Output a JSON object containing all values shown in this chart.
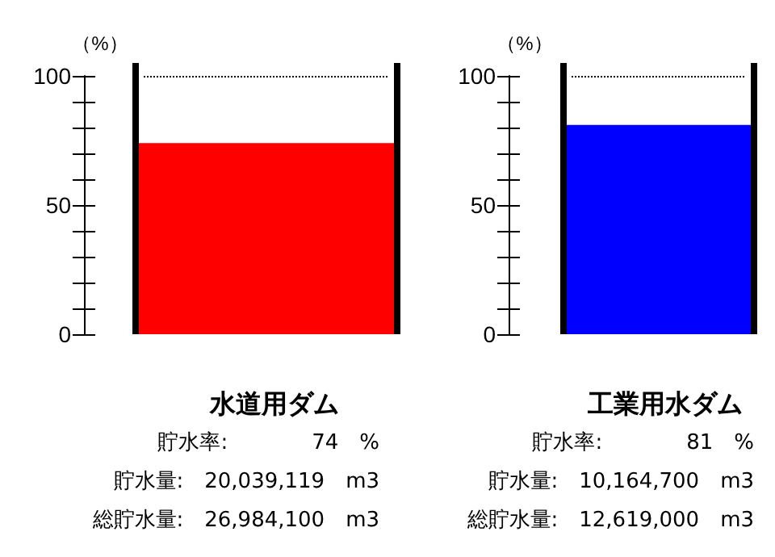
{
  "chart_data": [
    {
      "type": "bar",
      "title": "水道用ダム",
      "ylabel": "（%）",
      "categories": [
        null
      ],
      "values": [
        74
      ],
      "color": "#ff0000",
      "ylim": [
        0,
        100
      ],
      "yticks": [
        0,
        50,
        100
      ],
      "tick_labels": "y",
      "grid": false,
      "ref_lines": [
        {
          "axis": "y",
          "value": 100,
          "color": "#000000",
          "line_style": "dotted"
        }
      ],
      "annotations": [
        "貯水率:　　　　74　%",
        "貯水量:　20,039,119　m3",
        "総貯水量:　26,984,100　m3"
      ]
    },
    {
      "type": "bar",
      "title": "工業用水ダム",
      "ylabel": "（%）",
      "categories": [
        null
      ],
      "values": [
        81
      ],
      "color": "#0000ff",
      "ylim": [
        0,
        100
      ],
      "yticks": [
        0,
        50,
        100
      ],
      "tick_labels": "y",
      "grid": false,
      "ref_lines": [
        {
          "axis": "y",
          "value": 100,
          "color": "#000000",
          "line_style": "dotted"
        }
      ],
      "annotations": [
        "貯水率:　　　　81　%",
        "貯水量:　10,164,700　m3",
        "総貯水量:　12,619,000　m3"
      ]
    }
  ]
}
